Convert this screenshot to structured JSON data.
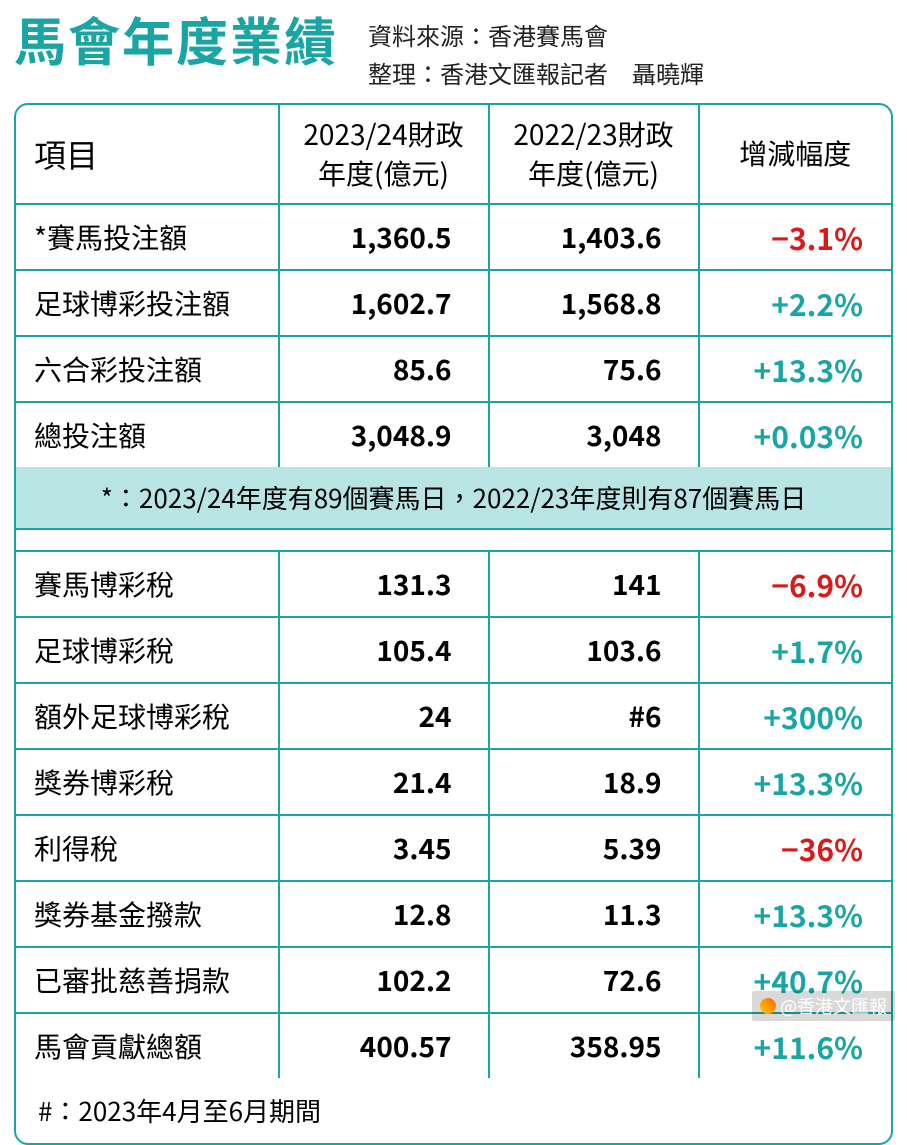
{
  "title": "馬會年度業績",
  "source_line1": "資料來源：香港賽馬會",
  "source_line2": "整理：香港文匯報記者　聶曉輝",
  "columns": {
    "item": "項目",
    "fy24": "2023/24財政年度(億元)",
    "fy23": "2022/23財政年度(億元)",
    "change": "增減幅度"
  },
  "section1": [
    {
      "item": "*賽馬投注額",
      "fy24": "1,360.5",
      "fy23": "1,403.6",
      "change": "−3.1%",
      "dir": "neg"
    },
    {
      "item": "足球博彩投注額",
      "fy24": "1,602.7",
      "fy23": "1,568.8",
      "change": "+2.2%",
      "dir": "pos"
    },
    {
      "item": "六合彩投注額",
      "fy24": "85.6",
      "fy23": "75.6",
      "change": "+13.3%",
      "dir": "pos"
    },
    {
      "item": "總投注額",
      "fy24": "3,048.9",
      "fy23": "3,048",
      "change": "+0.03%",
      "dir": "pos"
    }
  ],
  "note1": "*：2023/24年度有89個賽馬日，2022/23年度則有87個賽馬日",
  "section2": [
    {
      "item": "賽馬博彩稅",
      "fy24": "131.3",
      "fy23": "141",
      "change": "−6.9%",
      "dir": "neg"
    },
    {
      "item": "足球博彩稅",
      "fy24": "105.4",
      "fy23": "103.6",
      "change": "+1.7%",
      "dir": "pos"
    },
    {
      "item": "額外足球博彩稅",
      "fy24": "24",
      "fy23": "#6",
      "change": "+300%",
      "dir": "pos"
    },
    {
      "item": "獎券博彩稅",
      "fy24": "21.4",
      "fy23": "18.9",
      "change": "+13.3%",
      "dir": "pos"
    },
    {
      "item": "利得稅",
      "fy24": "3.45",
      "fy23": "5.39",
      "change": "−36%",
      "dir": "neg"
    },
    {
      "item": "獎券基金撥款",
      "fy24": "12.8",
      "fy23": "11.3",
      "change": "+13.3%",
      "dir": "pos"
    },
    {
      "item": "已審批慈善捐款",
      "fy24": "102.2",
      "fy23": "72.6",
      "change": "+40.7%",
      "dir": "pos"
    },
    {
      "item": "馬會貢獻總額",
      "fy24": "400.57",
      "fy23": "358.95",
      "change": "+11.6%",
      "dir": "pos"
    }
  ],
  "note2": "#：2023年4月至6月期間",
  "watermark": "@香港文匯報",
  "colors": {
    "accent": "#1aa5a5",
    "negative": "#d91a1a",
    "note_bg": "#b9e4e4",
    "text": "#222222"
  },
  "typography": {
    "title_fontsize": 52,
    "body_fontsize": 28,
    "change_fontsize": 30
  },
  "column_widths_pct": [
    30,
    24,
    24,
    22
  ]
}
